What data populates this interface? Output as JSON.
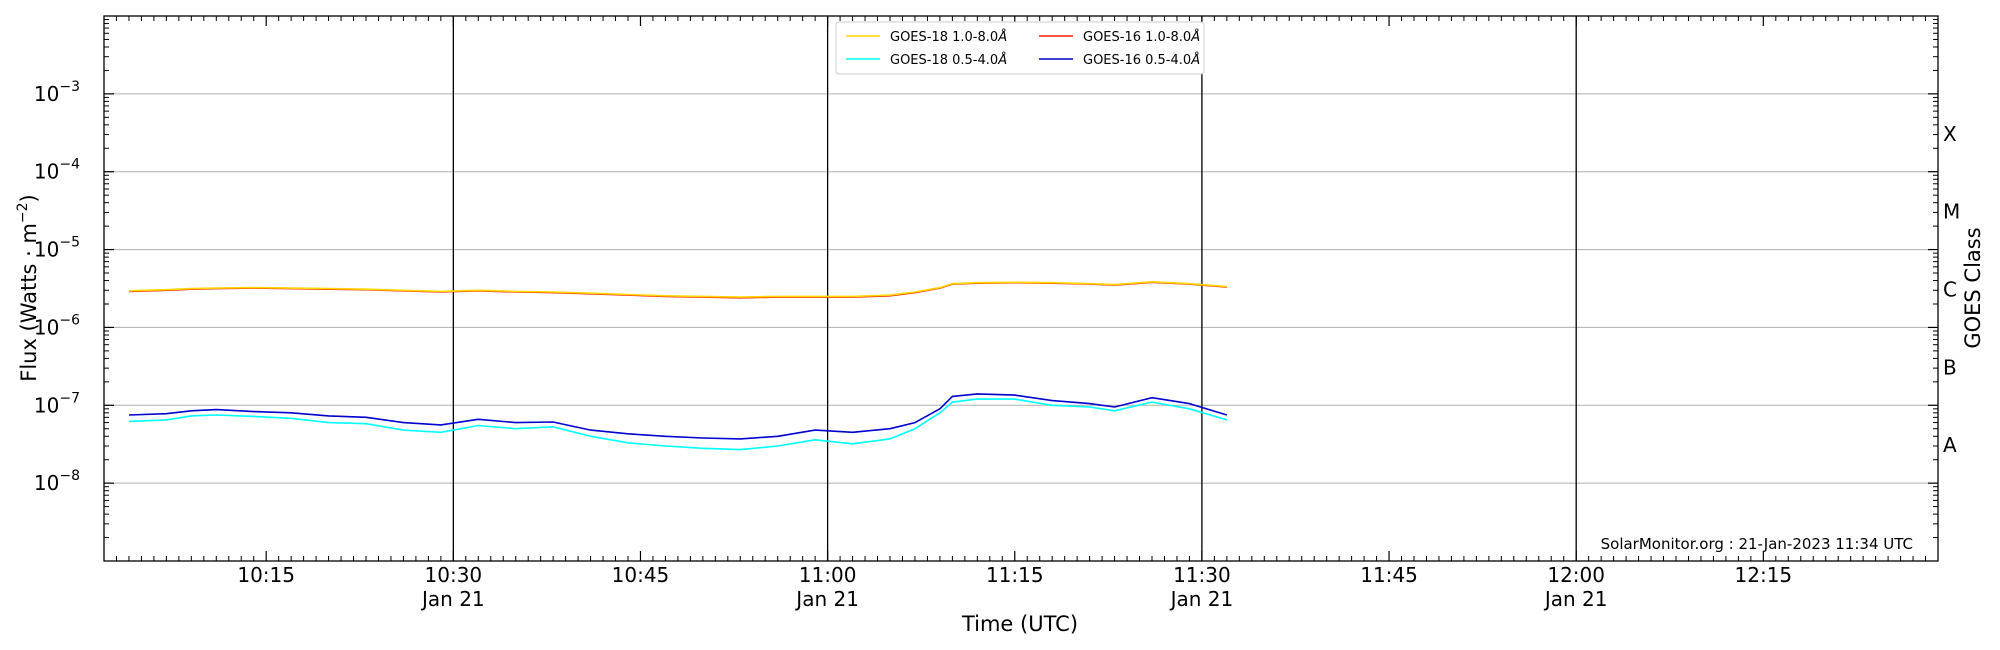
{
  "chart_data": {
    "type": "line",
    "xlabel": "Time (UTC)",
    "ylabel_main": "Flux (Watts · m",
    "ylabel_sup": "−2",
    "ylabel_close": ")",
    "right_axis_label": "GOES Class",
    "y_scale": "log",
    "ylim": [
      1e-09,
      0.01
    ],
    "xlim": [
      "10:02",
      "12:29"
    ],
    "grid": "horizontal at decades",
    "legend_position": "top-center",
    "y_ticks": [
      {
        "value": -8,
        "base": "10",
        "exp": "−8"
      },
      {
        "value": -7,
        "base": "10",
        "exp": "−7"
      },
      {
        "value": -6,
        "base": "10",
        "exp": "−6"
      },
      {
        "value": -5,
        "base": "10",
        "exp": "−5"
      },
      {
        "value": -4,
        "base": "10",
        "exp": "−4"
      },
      {
        "value": -3,
        "base": "10",
        "exp": "−3"
      }
    ],
    "x_ticks": [
      {
        "t": 13,
        "label": "10:15",
        "sub": ""
      },
      {
        "t": 28,
        "label": "10:30",
        "sub": "Jan 21"
      },
      {
        "t": 43,
        "label": "10:45",
        "sub": ""
      },
      {
        "t": 58,
        "label": "11:00",
        "sub": "Jan 21"
      },
      {
        "t": 73,
        "label": "11:15",
        "sub": ""
      },
      {
        "t": 88,
        "label": "11:30",
        "sub": "Jan 21"
      },
      {
        "t": 103,
        "label": "11:45",
        "sub": ""
      },
      {
        "t": 118,
        "label": "12:00",
        "sub": "Jan 21"
      },
      {
        "t": 133,
        "label": "12:15",
        "sub": ""
      }
    ],
    "vlines": [
      28,
      58,
      88,
      118
    ],
    "classes": [
      {
        "name": "A",
        "center": -7.5
      },
      {
        "name": "B",
        "center": -6.5
      },
      {
        "name": "C",
        "center": -5.5
      },
      {
        "name": "M",
        "center": -4.5
      },
      {
        "name": "X",
        "center": -3.5
      }
    ],
    "annotation": "SolarMonitor.org : 21-Jan-2023 11:34 UTC",
    "legend": [
      {
        "label": "GOES-18 1.0-8.0",
        "unit": "Å",
        "color": "#ffd700"
      },
      {
        "label": "GOES-18 0.5-4.0",
        "unit": "Å",
        "color": "#00ffff"
      },
      {
        "label": "GOES-16 1.0-8.0",
        "unit": "Å",
        "color": "#ff2200"
      },
      {
        "label": "GOES-16 0.5-4.0",
        "unit": "Å",
        "color": "#0000d0"
      }
    ],
    "x": [
      "10:02",
      "10:05",
      "10:07",
      "10:09",
      "10:12",
      "10:15",
      "10:18",
      "10:21",
      "10:24",
      "10:27",
      "10:30",
      "10:33",
      "10:36",
      "10:39",
      "10:42",
      "10:45",
      "10:48",
      "10:51",
      "10:54",
      "10:57",
      "11:00",
      "11:03",
      "11:05",
      "11:07",
      "11:08",
      "11:10",
      "11:13",
      "11:16",
      "11:19",
      "11:21",
      "11:24",
      "11:27",
      "11:30"
    ],
    "series": [
      {
        "name": "GOES-16 1.0-8.0Å",
        "color": "#ff2200",
        "values": [
          2.9e-06,
          3e-06,
          3.1e-06,
          3.15e-06,
          3.2e-06,
          3.15e-06,
          3.1e-06,
          3.05e-06,
          2.95e-06,
          2.85e-06,
          2.95e-06,
          2.85e-06,
          2.8e-06,
          2.7e-06,
          2.6e-06,
          2.5e-06,
          2.45e-06,
          2.4e-06,
          2.45e-06,
          2.45e-06,
          2.45e-06,
          2.55e-06,
          2.8e-06,
          3.2e-06,
          3.6e-06,
          3.7e-06,
          3.75e-06,
          3.7e-06,
          3.6e-06,
          3.5e-06,
          3.8e-06,
          3.6e-06,
          3.3e-06
        ]
      },
      {
        "name": "GOES-18 1.0-8.0Å",
        "color": "#ffd700",
        "values": [
          2.95e-06,
          3.05e-06,
          3.15e-06,
          3.2e-06,
          3.25e-06,
          3.2e-06,
          3.15e-06,
          3.1e-06,
          3e-06,
          2.9e-06,
          3e-06,
          2.9e-06,
          2.85e-06,
          2.75e-06,
          2.65e-06,
          2.55e-06,
          2.5e-06,
          2.45e-06,
          2.5e-06,
          2.5e-06,
          2.5e-06,
          2.6e-06,
          2.85e-06,
          3.25e-06,
          3.65e-06,
          3.75e-06,
          3.8e-06,
          3.75e-06,
          3.65e-06,
          3.55e-06,
          3.85e-06,
          3.65e-06,
          3.35e-06
        ]
      },
      {
        "name": "GOES-18 0.5-4.0Å",
        "color": "#00ffff",
        "values": [
          6.2e-08,
          6.5e-08,
          7.3e-08,
          7.5e-08,
          7.2e-08,
          6.8e-08,
          6e-08,
          5.8e-08,
          4.8e-08,
          4.5e-08,
          5.5e-08,
          5e-08,
          5.3e-08,
          4e-08,
          3.3e-08,
          3e-08,
          2.8e-08,
          2.7e-08,
          3e-08,
          3.6e-08,
          3.2e-08,
          3.7e-08,
          5e-08,
          8e-08,
          1.1e-07,
          1.2e-07,
          1.2e-07,
          1e-07,
          9.5e-08,
          8.5e-08,
          1.1e-07,
          9e-08,
          6.5e-08
        ]
      },
      {
        "name": "GOES-16 0.5-4.0Å",
        "color": "#0000d0",
        "values": [
          7.5e-08,
          7.8e-08,
          8.5e-08,
          8.8e-08,
          8.3e-08,
          8e-08,
          7.3e-08,
          7e-08,
          6e-08,
          5.6e-08,
          6.6e-08,
          6e-08,
          6.1e-08,
          4.8e-08,
          4.3e-08,
          4e-08,
          3.8e-08,
          3.7e-08,
          4e-08,
          4.8e-08,
          4.5e-08,
          5e-08,
          6e-08,
          9e-08,
          1.3e-07,
          1.4e-07,
          1.35e-07,
          1.15e-07,
          1.05e-07,
          9.5e-08,
          1.25e-07,
          1.05e-07,
          7.5e-08
        ]
      }
    ]
  }
}
